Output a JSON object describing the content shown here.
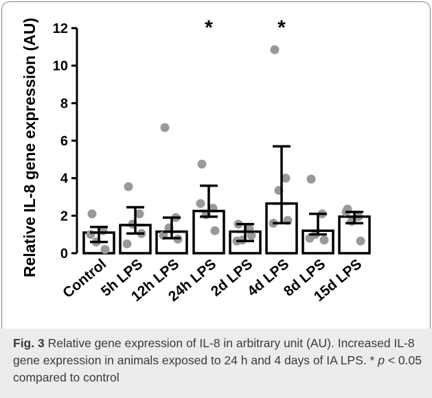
{
  "chart_data": {
    "type": "bar",
    "ylabel": "Relative IL-8 gene expression (AU)",
    "xlabel": "",
    "ylim": [
      0,
      12
    ],
    "yticks": [
      0,
      2,
      4,
      6,
      8,
      10,
      12
    ],
    "categories": [
      "Control",
      "5h LPS",
      "12h LPS",
      "24h LPS",
      "2d LPS",
      "4d LPS",
      "8d LPS",
      "15d LPS"
    ],
    "values": [
      1.1,
      1.5,
      1.15,
      2.25,
      1.15,
      2.65,
      1.2,
      1.95
    ],
    "error_low": [
      0.6,
      1.05,
      0.8,
      1.95,
      0.65,
      1.6,
      1.0,
      1.6
    ],
    "error_high": [
      1.4,
      2.45,
      1.9,
      3.6,
      1.55,
      5.7,
      2.1,
      2.2
    ],
    "points": [
      [
        2.1,
        1.2,
        0.6,
        0.2,
        1.0
      ],
      [
        3.55,
        2.1,
        1.55,
        1.05,
        0.5
      ],
      [
        6.7,
        1.9,
        1.35,
        0.75,
        0.95
      ],
      [
        4.75,
        2.4,
        2.05,
        1.2,
        2.65
      ],
      [
        1.55,
        1.3,
        0.7,
        0.95,
        0.65
      ],
      [
        10.85,
        4.0,
        3.35,
        1.75,
        1.6
      ],
      [
        3.95,
        2.1,
        1.0,
        0.7,
        0.8
      ],
      [
        2.35,
        1.95,
        1.7,
        0.65,
        2.2
      ]
    ],
    "significance": [
      "",
      "",
      "",
      "*",
      "",
      "*",
      "",
      ""
    ],
    "colors": {
      "bar_fill": "#ffffff",
      "bar_stroke": "#000000",
      "points": "#999999"
    }
  },
  "caption": {
    "label": "Fig. 3",
    "text": "Relative gene expression of IL-8 in arbitrary unit (AU). Increased IL-8 gene expression in animals exposed to 24 h and 4 days of IA LPS. *",
    "p_symbol": "p",
    "tail": "< 0.05 compared to control"
  }
}
